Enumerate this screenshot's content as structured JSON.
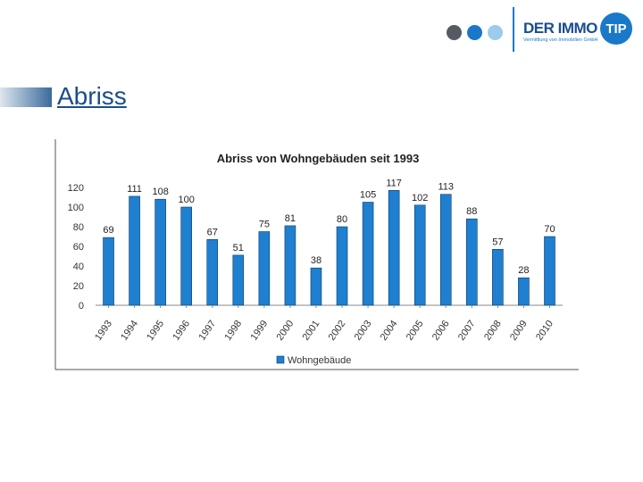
{
  "header": {
    "logo": {
      "brand": "DER IMMO",
      "tip": "TIP",
      "tagline": "Vermittlung von Immobilien GmbH",
      "dot_colors": [
        "#555b63",
        "#1a78c8",
        "#9ccbee"
      ]
    },
    "slide_title": "Abriss"
  },
  "chart_data": {
    "type": "bar",
    "title": "Abriss von Wohngebäuden seit 1993",
    "xlabel": "",
    "ylabel": "",
    "ylim": [
      0,
      120
    ],
    "yticks": [
      0,
      20,
      40,
      60,
      80,
      100,
      120
    ],
    "categories": [
      "1993",
      "1994",
      "1995",
      "1996",
      "1997",
      "1998",
      "1999",
      "2000",
      "2001",
      "2002",
      "2003",
      "2004",
      "2005",
      "2006",
      "2007",
      "2008",
      "2009",
      "2010"
    ],
    "series": [
      {
        "name": "Wohngebäude",
        "color": "#1f7fd1",
        "values": [
          69,
          111,
          108,
          100,
          67,
          51,
          75,
          81,
          38,
          80,
          105,
          117,
          102,
          113,
          88,
          57,
          28,
          70
        ]
      }
    ],
    "legend": "bottom"
  }
}
